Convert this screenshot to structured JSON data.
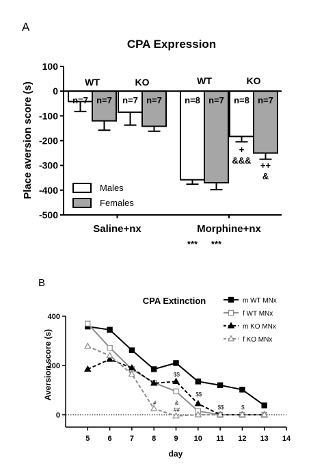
{
  "panels": {
    "a_label": "A",
    "b_label": "B"
  },
  "chart_data": [
    {
      "type": "bar",
      "title": "CPA Expression",
      "xlabel": "",
      "ylabel": "Place aversion score (s)",
      "ylim": [
        -500,
        100
      ],
      "yticks": [
        100,
        0,
        -100,
        -200,
        -300,
        -400,
        -500
      ],
      "group_labels": [
        "Saline+nx",
        "Morphine+nx"
      ],
      "genotype_labels": [
        "WT",
        "KO",
        "WT",
        "KO"
      ],
      "series": [
        {
          "name": "Males",
          "color": "#ffffff",
          "values": [
            -42,
            -85,
            -358,
            -183
          ],
          "errors": [
            40,
            52,
            18,
            22
          ],
          "n_labels": [
            "n=7",
            "n=7",
            "n=8",
            "n=8"
          ]
        },
        {
          "name": "Females",
          "color": "#a6a6a6",
          "values": [
            -120,
            -142,
            -370,
            -250
          ],
          "errors": [
            38,
            20,
            28,
            25
          ],
          "n_labels": [
            "n=7",
            "n=7",
            "n=7",
            "n=7"
          ]
        }
      ],
      "significance": [
        {
          "group": 1,
          "series": 0,
          "lines": [
            "***"
          ]
        },
        {
          "group": 1,
          "series": 1,
          "lines": [
            "***"
          ]
        },
        {
          "group": 1.5,
          "series": 0,
          "lines": [
            "+",
            "&&&"
          ]
        },
        {
          "group": 1.5,
          "series": 1,
          "lines": [
            "++",
            "&"
          ]
        }
      ],
      "legend": {
        "position": "bottom-left",
        "entries": [
          "Males",
          "Females"
        ]
      }
    },
    {
      "type": "line",
      "title": "CPA Extinction",
      "xlabel": "day",
      "ylabel": "Aversion score (s)",
      "xlim": [
        4,
        14
      ],
      "ylim": [
        -50,
        400
      ],
      "xticks": [
        5,
        6,
        7,
        8,
        9,
        10,
        11,
        12,
        13,
        14
      ],
      "yticks": [
        0,
        200,
        400
      ],
      "reference_line": 0,
      "series": [
        {
          "name": "m WT MNx",
          "color": "#000000",
          "marker": "square-filled",
          "dash": "solid",
          "x": [
            5,
            6,
            7,
            8,
            9,
            10,
            11,
            12,
            13
          ],
          "values": [
            358,
            345,
            262,
            185,
            210,
            135,
            120,
            102,
            38
          ]
        },
        {
          "name": "f WT MNx",
          "color": "#8c8c8c",
          "marker": "square-open",
          "dash": "solid",
          "x": [
            5,
            6,
            7,
            8,
            9,
            10,
            11,
            12,
            13
          ],
          "values": [
            370,
            272,
            185,
            130,
            95,
            15,
            0,
            0,
            0
          ]
        },
        {
          "name": "m KO MNx",
          "color": "#000000",
          "marker": "triangle-filled",
          "dash": "dashed",
          "x": [
            5,
            6,
            7,
            8,
            9,
            10,
            11,
            12,
            13
          ],
          "values": [
            185,
            225,
            190,
            128,
            135,
            45,
            0,
            0,
            0
          ]
        },
        {
          "name": "f KO MNx",
          "color": "#8c8c8c",
          "marker": "triangle-open",
          "dash": "dashed",
          "x": [
            5,
            6,
            7,
            8,
            9,
            10,
            11,
            12,
            13
          ],
          "values": [
            278,
            240,
            165,
            25,
            -5,
            0,
            0,
            0,
            0
          ]
        }
      ],
      "annotations": [
        {
          "text": "$$",
          "x": 9,
          "y": 155
        },
        {
          "text": "&",
          "x": 9,
          "y": 40
        },
        {
          "text": "##",
          "x": 9,
          "y": 12
        },
        {
          "text": "#",
          "x": 8,
          "y": 40
        },
        {
          "text": "$$",
          "x": 10,
          "y": 75
        },
        {
          "text": "$$",
          "x": 11,
          "y": 22
        },
        {
          "text": "$",
          "x": 12,
          "y": 22
        }
      ],
      "legend": {
        "position": "top-right",
        "entries": [
          "m WT MNx",
          "f WT MNx",
          "m KO MNx",
          "f KO MNx"
        ]
      }
    }
  ]
}
